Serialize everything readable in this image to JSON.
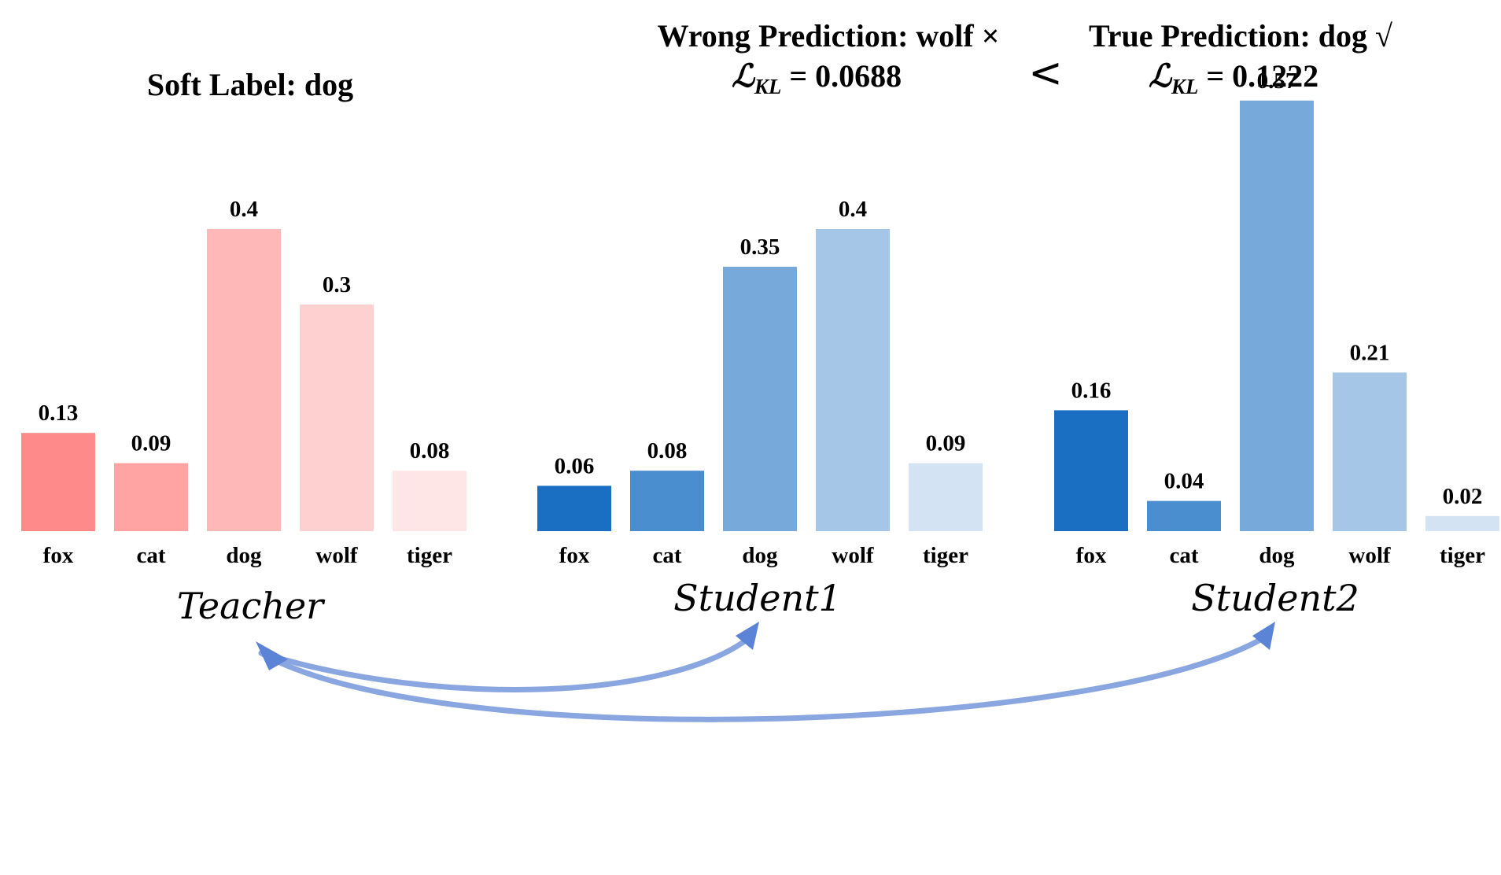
{
  "header": {
    "soft_label": "Soft Label: dog",
    "wrong_prediction": "Wrong Prediction: wolf ×",
    "wrong_loss": "= 0.0688",
    "less_than": "<",
    "true_prediction": "True Prediction: dog √",
    "true_loss": "= 0.1222",
    "loss_symbol": "ℒ",
    "loss_subscript": "KL"
  },
  "chart_data": [
    {
      "type": "bar",
      "title": "Teacher",
      "categories": [
        "fox",
        "cat",
        "dog",
        "wolf",
        "tiger"
      ],
      "values": [
        0.13,
        0.09,
        0.4,
        0.3,
        0.08
      ],
      "value_labels": [
        "0.13",
        "0.09",
        "0.4",
        "0.3",
        "0.08"
      ],
      "colors": [
        "#ff8a8a",
        "#ffa3a3",
        "#ffb8b8",
        "#ffd0d0",
        "#ffe6e6"
      ]
    },
    {
      "type": "bar",
      "title": "Student1",
      "categories": [
        "fox",
        "cat",
        "dog",
        "wolf",
        "tiger"
      ],
      "values": [
        0.06,
        0.08,
        0.35,
        0.4,
        0.09
      ],
      "value_labels": [
        "0.06",
        "0.08",
        "0.35",
        "0.4",
        "0.09"
      ],
      "colors": [
        "#1b6fc2",
        "#4a8ed0",
        "#77a9da",
        "#a5c6e7",
        "#d3e3f3"
      ]
    },
    {
      "type": "bar",
      "title": "Student2",
      "categories": [
        "fox",
        "cat",
        "dog",
        "wolf",
        "tiger"
      ],
      "values": [
        0.16,
        0.04,
        0.57,
        0.21,
        0.02
      ],
      "value_labels": [
        "0.16",
        "0.04",
        "0.57",
        "0.21",
        "0.02"
      ],
      "colors": [
        "#1b6fc2",
        "#4a8ed0",
        "#77a9da",
        "#a5c6e7",
        "#d3e3f3"
      ]
    }
  ],
  "arrow_color": "#8aa6e0",
  "arrow_head_color": "#5b83d6"
}
